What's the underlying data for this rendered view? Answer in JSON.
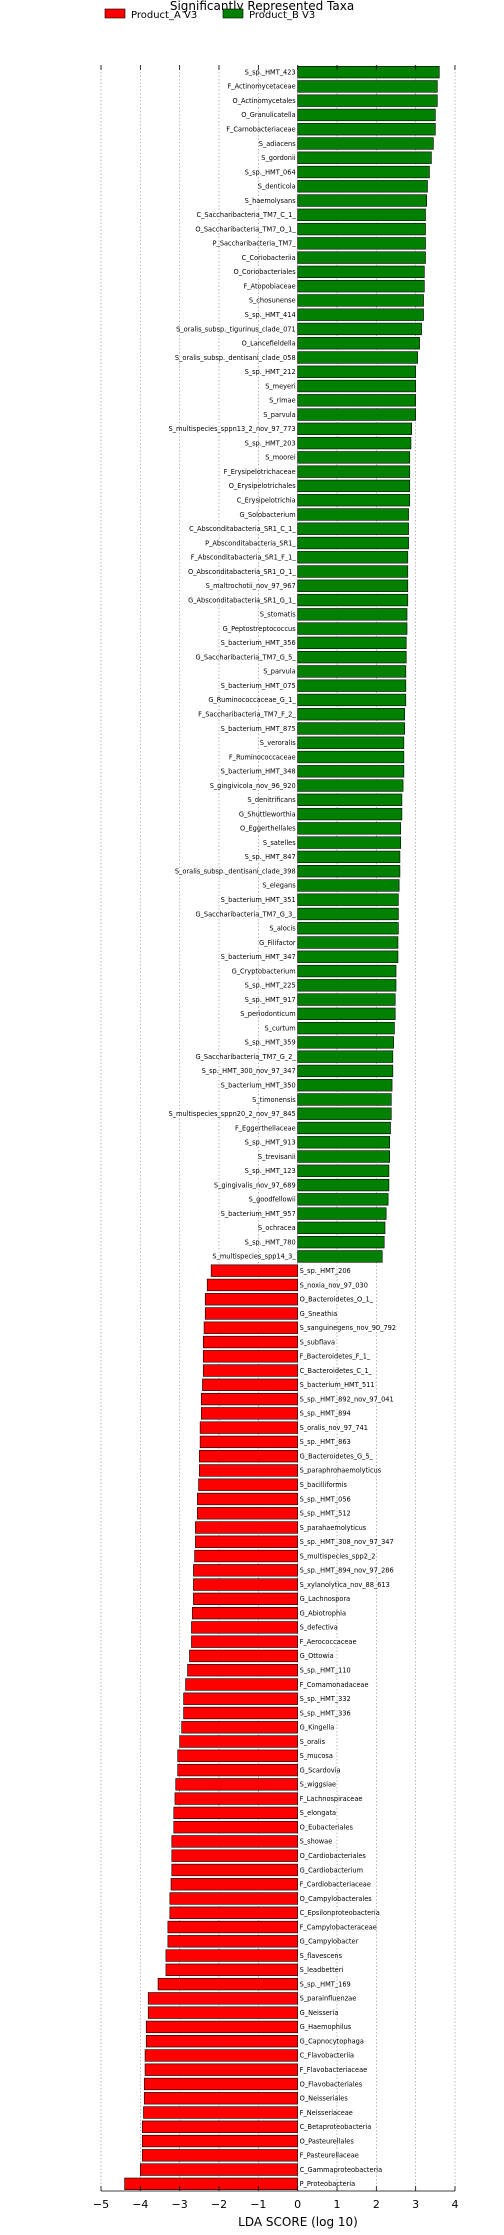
{
  "chart_data": {
    "type": "bar",
    "orientation": "horizontal",
    "title": "Significantly Represented Taxa",
    "xlabel": "LDA SCORE (log 10)",
    "xlim": [
      -5,
      4
    ],
    "xticks": [
      -5,
      -4,
      -3,
      -2,
      -1,
      0,
      1,
      2,
      3,
      4
    ],
    "grid": "vertical dotted",
    "legend": {
      "placement": "top-left",
      "entries": [
        {
          "name": "Product_A V3",
          "color": "#ff0000"
        },
        {
          "name": "Product_B V3",
          "color": "#008000"
        }
      ]
    },
    "series": [
      {
        "name": "Product_B V3",
        "color": "#008000",
        "labels": [
          "S_sp._HMT_423",
          "F_Actinomycetaceae",
          "O_Actinomycetales",
          "O_Granulicatella",
          "F_Carnobacteriaceae",
          "S_adiacens",
          "S_gordonii",
          "S_sp._HMT_064",
          "S_denticola",
          "S_haemolysans",
          "C_Saccharibacteria_TM7_C_1_",
          "O_Saccharibacteria_TM7_O_1_",
          "P_Saccharibacteria_TM7_",
          "C_Coriobacteriia",
          "O_Coriobacteriales",
          "F_Atopobiaceae",
          "S_chosunense",
          "S_sp._HMT_414",
          "S_oralis_subsp._tigurinus_clade_071",
          "O_Lancefieldella",
          "S_oralis_subsp._dentisani_clade_058",
          "S_sp._HMT_212",
          "S_meyeri",
          "S_rimae",
          "S_parvula",
          "S_multispecies_sppn13_2_nov_97_773",
          "S_sp._HMT_203",
          "S_moorei",
          "F_Erysipelotrichaceae",
          "O_Erysipelotrichales",
          "C_Erysipelotrichia",
          "G_Solobacterium",
          "C_Absconditabacteria_SR1_C_1_",
          "P_Absconditabacteria_SR1_",
          "F_Absconditabacteria_SR1_F_1_",
          "O_Absconditabacteria_SR1_O_1_",
          "S_maltrochotii_nov_97_967",
          "G_Absconditabacteria_SR1_G_1_",
          "S_stomatis",
          "G_Peptostreptococcus",
          "S_bacterium_HMT_356",
          "G_Saccharibacteria_TM7_G_5_",
          "S_parvula",
          "S_bacterium_HMT_075",
          "G_Ruminococcaceae_G_1_",
          "F_Saccharibacteria_TM7_F_2_",
          "S_bacterium_HMT_875",
          "S_veroralis",
          "F_Ruminococcaceae",
          "S_bacterium_HMT_348",
          "S_gingivicola_nov_96_920",
          "S_denitrificans",
          "G_Shuttleworthia",
          "O_Eggerthellales",
          "S_satelles",
          "S_sp._HMT_847",
          "S_oralis_subsp._dentisani_clade_398",
          "S_elegans",
          "S_bacterium_HMT_351",
          "G_Saccharibacteria_TM7_G_3_",
          "S_alocis",
          "G_Filifactor",
          "S_bacterium_HMT_347",
          "G_Cryptobacterium",
          "S_sp._HMT_225",
          "S_sp._HMT_917",
          "S_periodonticum",
          "S_curtum",
          "S_sp._HMT_359",
          "G_Saccharibacteria_TM7_G_2_",
          "S_sp._HMT_300_nov_97_347",
          "S_bacterium_HMT_350",
          "S_timonensis",
          "S_multispecies_sppn20_2_nov_97_845",
          "F_Eggerthellaceae",
          "S_sp._HMT_913",
          "S_trevisanii",
          "S_sp._HMT_123",
          "S_gingivalis_nov_97_689",
          "S_goodfellowii",
          "S_bacterium_HMT_957",
          "S_ochracea",
          "S_sp._HMT_780",
          "S_multispecies_spp14_3_"
        ],
        "values": [
          3.6,
          3.55,
          3.55,
          3.5,
          3.5,
          3.45,
          3.4,
          3.35,
          3.3,
          3.28,
          3.25,
          3.25,
          3.25,
          3.25,
          3.22,
          3.22,
          3.2,
          3.2,
          3.15,
          3.1,
          3.05,
          3.0,
          3.0,
          3.0,
          3.0,
          2.9,
          2.88,
          2.85,
          2.85,
          2.85,
          2.85,
          2.82,
          2.82,
          2.82,
          2.8,
          2.8,
          2.8,
          2.8,
          2.78,
          2.78,
          2.76,
          2.76,
          2.75,
          2.75,
          2.75,
          2.72,
          2.72,
          2.7,
          2.7,
          2.7,
          2.68,
          2.65,
          2.65,
          2.62,
          2.62,
          2.6,
          2.6,
          2.58,
          2.56,
          2.56,
          2.56,
          2.55,
          2.55,
          2.5,
          2.5,
          2.48,
          2.48,
          2.46,
          2.44,
          2.42,
          2.42,
          2.4,
          2.38,
          2.38,
          2.36,
          2.34,
          2.34,
          2.32,
          2.32,
          2.3,
          2.25,
          2.22,
          2.2,
          2.15
        ]
      },
      {
        "name": "Product_A V3",
        "color": "#ff0000",
        "labels": [
          "S_sp._HMT_206",
          "S_noxia_nov_97_030",
          "O_Bacteroidetes_O_1_",
          "G_Sneathia",
          "S_sanguinegens_nov_90_792",
          "S_subflava",
          "F_Bacteroidetes_F_1_",
          "C_Bacteroidetes_C_1_",
          "S_bacterium_HMT_511",
          "S_sp._HMT_892_nov_97_041",
          "S_sp._HMT_894",
          "S_oralis_nov_97_741",
          "S_sp._HMT_863",
          "G_Bacteroidetes_G_5_",
          "S_paraphrohaemolyticus",
          "S_bacilliformis",
          "S_sp._HMT_056",
          "S_sp._HMT_512",
          "S_parahaemolyticus",
          "S_sp._HMT_308_nov_97_347",
          "S_multispecies_spp2_2",
          "S_sp._HMT_894_nov_97_286",
          "S_xylanolytica_nov_88_613",
          "G_Lachnospora",
          "G_Abiotrophia",
          "S_defectiva",
          "F_Aerococcaceae",
          "G_Ottowia",
          "S_sp._HMT_110",
          "F_Comamonadaceae",
          "S_sp._HMT_332",
          "S_sp._HMT_336",
          "G_Kingella",
          "S_oralis",
          "S_mucosa",
          "G_Scardovia",
          "S_wiggsiae",
          "F_Lachnospiraceae",
          "S_elongata",
          "O_Eubacteriales",
          "S_showae",
          "O_Cardiobacteriales",
          "G_Cardiobacterium",
          "F_Cardiobacteriaceae",
          "O_Campylobacterales",
          "C_Epsilonproteobacteria",
          "F_Campylobacteraceae",
          "G_Campylobacter",
          "S_flavescens",
          "S_leadbetteri",
          "S_sp._HMT_169",
          "S_parainfluenzae",
          "G_Neisseria",
          "G_Haemophilus",
          "G_Capnocytophaga",
          "C_Flavobacteriia",
          "F_Flavobacteriaceae",
          "O_Flavobacteriales",
          "O_Neisseriales",
          "F_Neisseriaceae",
          "C_Betaproteobacteria",
          "O_Pasteurellales",
          "F_Pasteurellaceae",
          "C_Gammaproteobacteria",
          "P_Proteobacteria"
        ],
        "values": [
          -2.2,
          -2.3,
          -2.35,
          -2.35,
          -2.38,
          -2.4,
          -2.4,
          -2.4,
          -2.42,
          -2.45,
          -2.45,
          -2.48,
          -2.48,
          -2.5,
          -2.5,
          -2.52,
          -2.55,
          -2.55,
          -2.6,
          -2.6,
          -2.62,
          -2.65,
          -2.65,
          -2.65,
          -2.68,
          -2.7,
          -2.7,
          -2.75,
          -2.8,
          -2.85,
          -2.9,
          -2.9,
          -2.95,
          -3.0,
          -3.05,
          -3.05,
          -3.1,
          -3.12,
          -3.15,
          -3.15,
          -3.2,
          -3.2,
          -3.2,
          -3.22,
          -3.25,
          -3.25,
          -3.3,
          -3.3,
          -3.35,
          -3.35,
          -3.55,
          -3.8,
          -3.8,
          -3.85,
          -3.85,
          -3.88,
          -3.88,
          -3.9,
          -3.9,
          -3.92,
          -3.95,
          -3.95,
          -3.95,
          -4.0,
          -4.4
        ]
      }
    ]
  }
}
